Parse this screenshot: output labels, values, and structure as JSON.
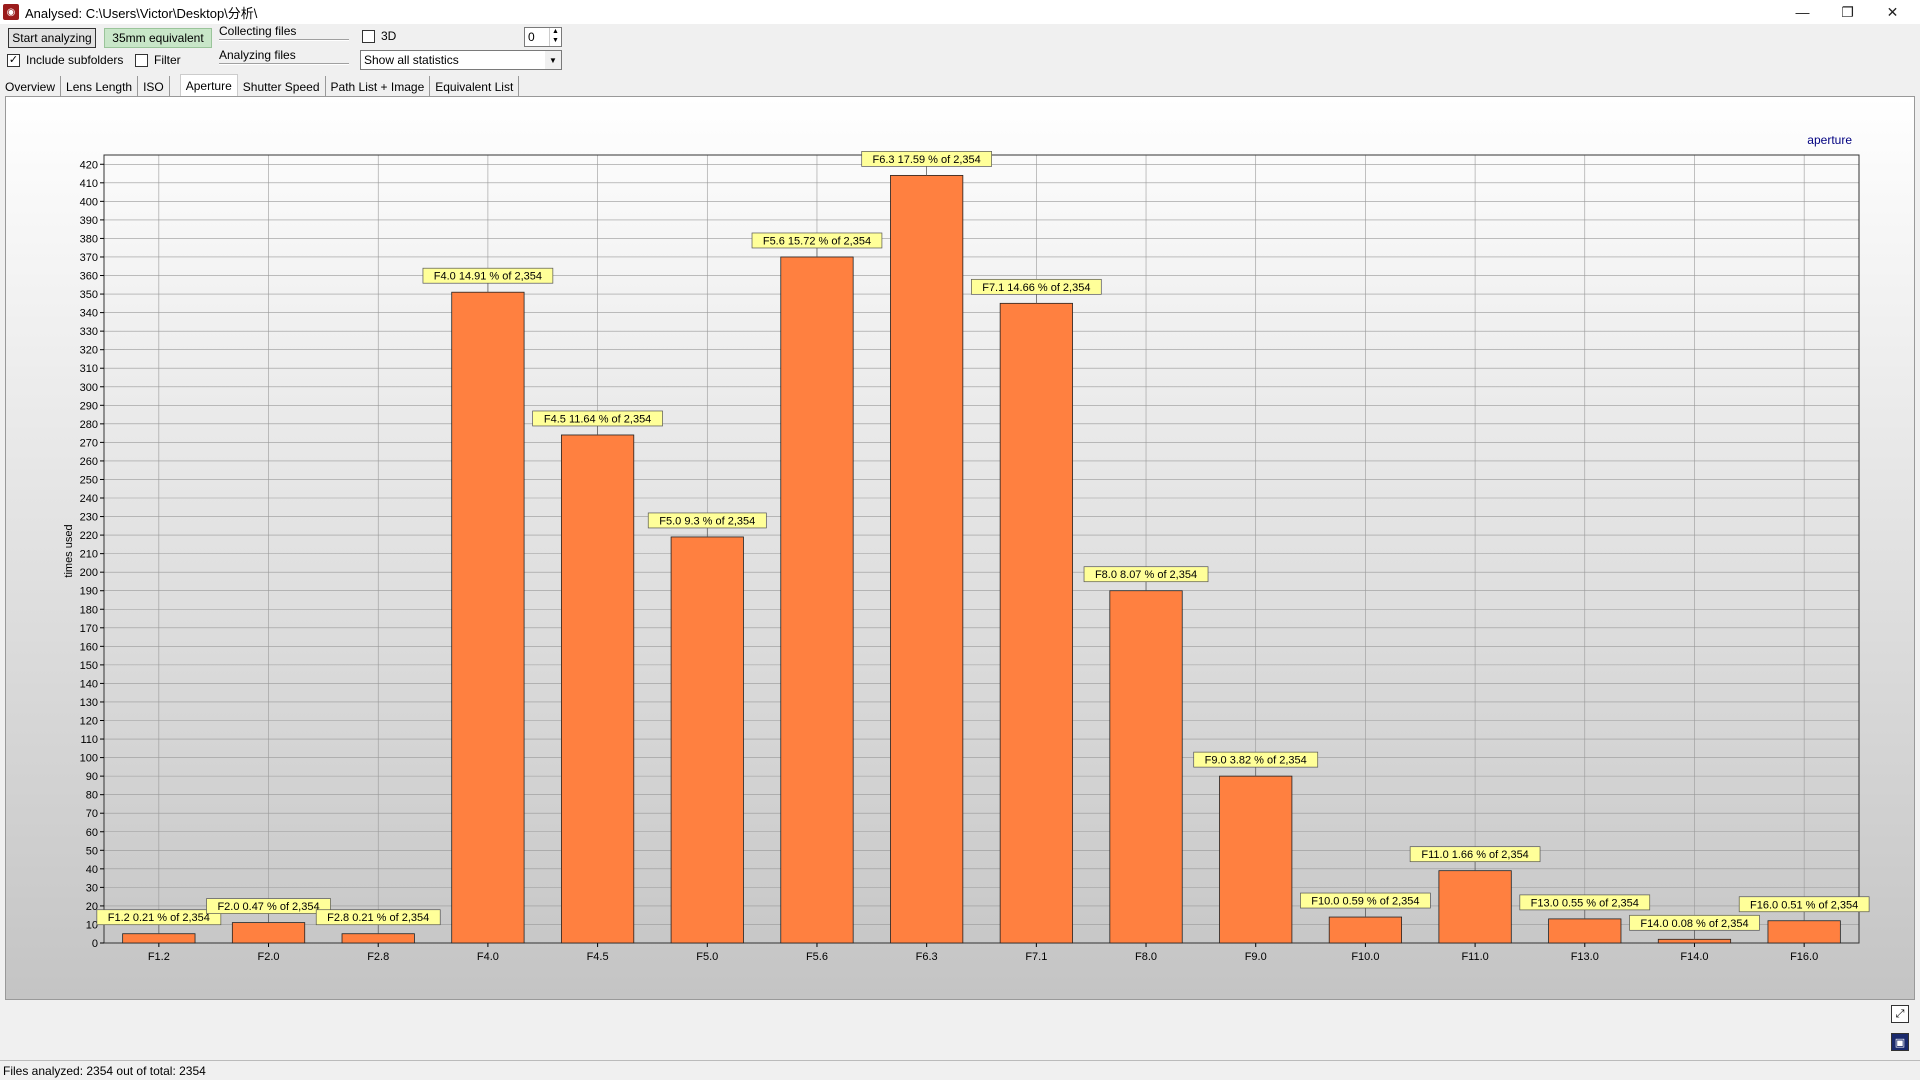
{
  "window": {
    "title": "Analysed: C:\\Users\\Victor\\Desktop\\分析\\",
    "minimize": "—",
    "restore": "❐",
    "close": "✕"
  },
  "toolbar": {
    "start_label": "Start analyzing",
    "equiv_label": "35mm equivalent",
    "collecting_label": "Collecting files",
    "analyzing_label": "Analyzing files",
    "include_subfolders_label": "Include subfolders",
    "include_subfolders_checked": true,
    "filter_label": "Filter",
    "filter_checked": false,
    "threed_label": "3D",
    "threed_checked": false,
    "spin_value": "0",
    "stats_select_value": "Show all statistics"
  },
  "tabs": [
    {
      "label": "Overview",
      "active": false
    },
    {
      "label": "Lens Length",
      "active": false
    },
    {
      "label": "ISO",
      "active": false
    },
    {
      "label": "Aperture",
      "active": true
    },
    {
      "label": "Shutter Speed",
      "active": false
    },
    {
      "label": "Path List + Image",
      "active": false
    },
    {
      "label": "Equivalent List",
      "active": false
    }
  ],
  "status": {
    "text": "Files analyzed: 2354 out of total: 2354"
  },
  "colors": {
    "bar_fill": "#ff8040",
    "bar_stroke": "#222222",
    "label_bg": "#ffff99",
    "legend_text": "#000080"
  },
  "icons": {
    "app": "camera-app-icon",
    "fullscreen": "expand-icon",
    "save": "save-icon"
  },
  "chart_data": {
    "type": "bar",
    "legend": "aperture",
    "legend_position": "top-right",
    "ylabel": "times used",
    "ylim": [
      0,
      420
    ],
    "ytick_step": 10,
    "grid": true,
    "total": "2,354",
    "categories": [
      "F1.2",
      "F2.0",
      "F2.8",
      "F4.0",
      "F4.5",
      "F5.0",
      "F5.6",
      "F6.3",
      "F7.1",
      "F8.0",
      "F9.0",
      "F10.0",
      "F11.0",
      "F13.0",
      "F14.0",
      "F16.0"
    ],
    "values": [
      5,
      11,
      5,
      351,
      274,
      219,
      370,
      414,
      345,
      190,
      90,
      14,
      39,
      13,
      2,
      12
    ],
    "labels": [
      "F1.2 0.21 % of 2,354",
      "F2.0 0.47 % of 2,354",
      "F2.8 0.21 % of 2,354",
      "F4.0 14.91 % of 2,354",
      "F4.5 11.64 % of 2,354",
      "F5.0 9.3 % of 2,354",
      "F5.6 15.72 % of 2,354",
      "F6.3 17.59 % of 2,354",
      "F7.1 14.66 % of 2,354",
      "F8.0 8.07 % of 2,354",
      "F9.0 3.82 % of 2,354",
      "F10.0 0.59 % of 2,354",
      "F11.0 1.66 % of 2,354",
      "F13.0 0.55 % of 2,354",
      "F14.0 0.08 % of 2,354",
      "F16.0 0.51 % of 2,354"
    ]
  }
}
